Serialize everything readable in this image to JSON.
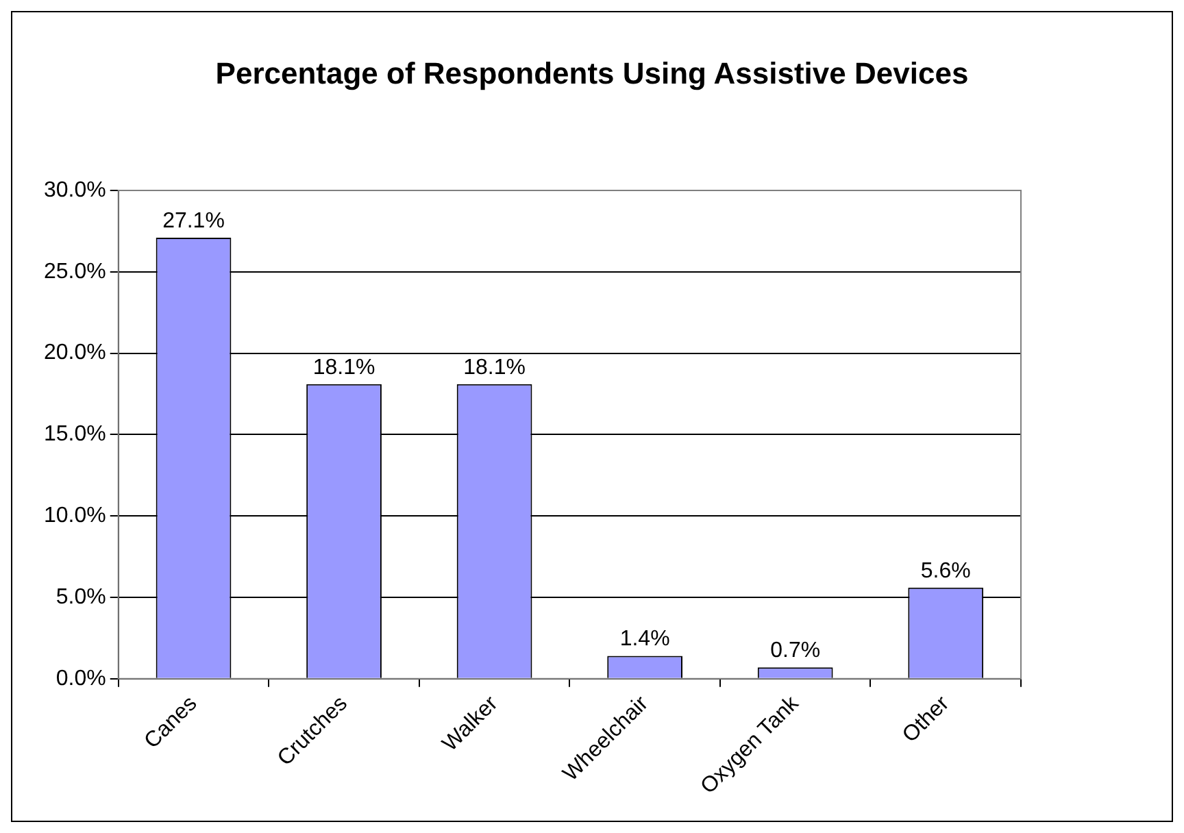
{
  "chart_data": {
    "type": "bar",
    "title": "Percentage of Respondents Using Assistive Devices",
    "categories": [
      "Canes",
      "Crutches",
      "Walker",
      "Wheelchair",
      "Oxygen Tank",
      "Other"
    ],
    "values": [
      27.1,
      18.1,
      18.1,
      1.4,
      0.7,
      5.6
    ],
    "value_labels": [
      "27.1%",
      "18.1%",
      "18.1%",
      "1.4%",
      "0.7%",
      "5.6%"
    ],
    "color": "#9999ff",
    "ylim": [
      0,
      30
    ],
    "yticks": [
      {
        "value": 0,
        "label": "0.0%"
      },
      {
        "value": 5,
        "label": "5.0%"
      },
      {
        "value": 10,
        "label": "10.0%"
      },
      {
        "value": 15,
        "label": "15.0%"
      },
      {
        "value": 20,
        "label": "20.0%"
      },
      {
        "value": 25,
        "label": "25.0%"
      },
      {
        "value": 30,
        "label": "30.0%"
      }
    ],
    "grid": "y",
    "legend": false
  }
}
